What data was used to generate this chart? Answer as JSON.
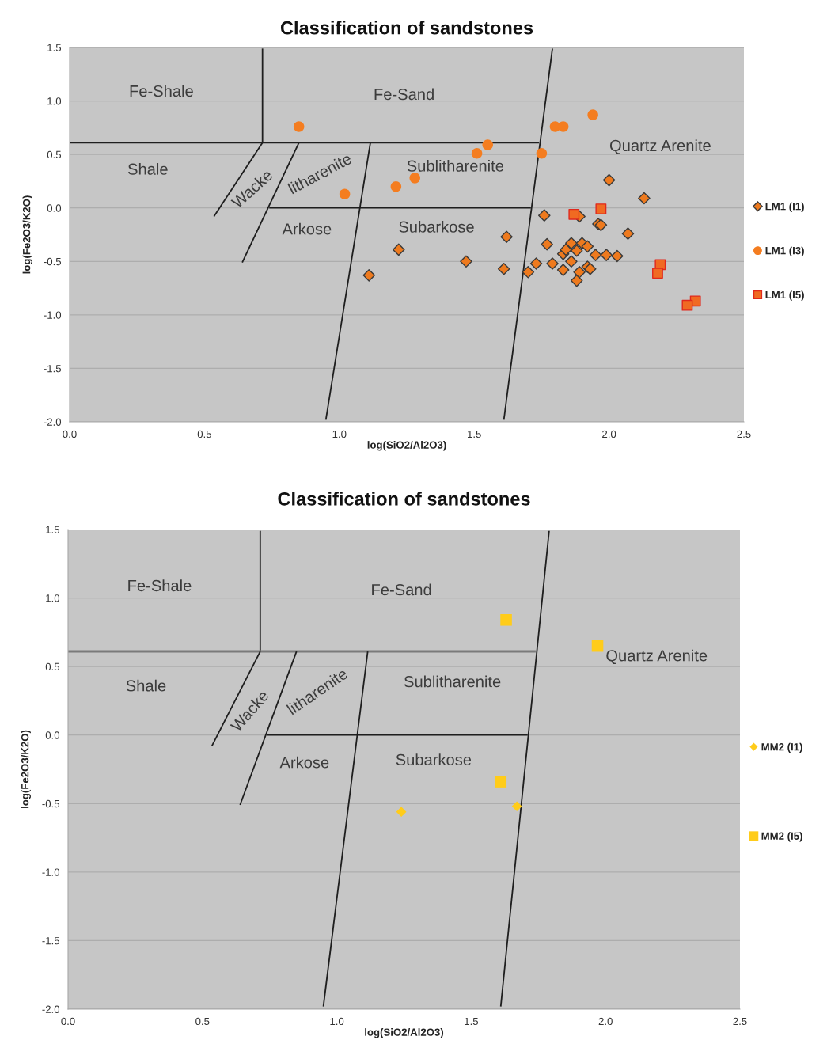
{
  "chart_data": [
    {
      "type": "scatter",
      "title": "Classification of sandstones",
      "xlabel": "log(SiO2/Al2O3)",
      "ylabel": "log(Fe2O3/K2O)",
      "xlim": [
        0,
        2.5
      ],
      "xticks": [
        {
          "value": 0,
          "label": "0.0"
        },
        {
          "value": 0.5,
          "label": "0.5"
        },
        {
          "value": 1,
          "label": "1.0"
        },
        {
          "value": 1.5,
          "label": "1.5"
        },
        {
          "value": 2,
          "label": "2.0"
        },
        {
          "value": 2.5,
          "label": "2.5"
        }
      ],
      "ylim": [
        -2,
        1.5
      ],
      "yticks": [
        {
          "value": -2,
          "label": "-2.0"
        },
        {
          "value": -1.5,
          "label": "-1.5"
        },
        {
          "value": -1,
          "label": "-1.0"
        },
        {
          "value": -0.5,
          "label": "-0.5"
        },
        {
          "value": 0,
          "label": "0.0"
        },
        {
          "value": 0.5,
          "label": "0.5"
        },
        {
          "value": 1,
          "label": "1.0"
        },
        {
          "value": 1.5,
          "label": "1.5"
        }
      ],
      "grid": "y",
      "legend": "right",
      "series": [
        {
          "name": "LM1 (I1)",
          "marker": "diamond",
          "color": "#ee7a1e",
          "x": [
            1.11,
            1.22,
            1.47,
            1.61,
            1.62,
            1.7,
            1.73,
            1.76,
            1.77,
            1.79,
            1.83,
            1.83,
            1.84,
            1.86,
            1.86,
            1.88,
            1.88,
            1.89,
            1.89,
            1.9,
            1.92,
            1.92,
            1.93,
            1.95,
            1.96,
            1.97,
            1.99,
            2.0,
            2.03,
            2.07,
            2.13
          ],
          "values": [
            -0.63,
            -0.39,
            -0.5,
            -0.57,
            -0.27,
            -0.6,
            -0.52,
            -0.07,
            -0.34,
            -0.52,
            -0.43,
            -0.58,
            -0.39,
            -0.5,
            -0.33,
            -0.4,
            -0.68,
            -0.6,
            -0.08,
            -0.33,
            -0.36,
            -0.55,
            -0.57,
            -0.44,
            -0.15,
            -0.16,
            -0.44,
            0.26,
            -0.45,
            -0.24,
            0.09
          ]
        },
        {
          "name": "LM1 (I3)",
          "marker": "circle",
          "color": "#f47d20",
          "x": [
            0.85,
            1.02,
            1.21,
            1.28,
            1.51,
            1.55,
            1.75,
            1.8,
            1.83,
            1.94
          ],
          "values": [
            0.76,
            0.13,
            0.2,
            0.28,
            0.51,
            0.59,
            0.51,
            0.76,
            0.76,
            0.87
          ]
        },
        {
          "name": "LM1 (I5)",
          "marker": "square",
          "color": "#f06a22",
          "x": [
            1.87,
            1.97,
            2.19,
            2.18,
            2.32,
            2.29
          ],
          "values": [
            -0.06,
            -0.01,
            -0.53,
            -0.61,
            -0.87,
            -0.91
          ]
        },
        {
          "type": "line",
          "marker": "none",
          "line_style": "solid",
          "color": "#1e1e1e",
          "x": [
            0.715,
            0.715
          ],
          "values": [
            0.61,
            1.49
          ]
        },
        {
          "type": "line",
          "marker": "none",
          "line_style": "solid",
          "color": "#1e1e1e",
          "x": [
            0,
            1.74
          ],
          "values": [
            0.61,
            0.61
          ]
        },
        {
          "type": "line",
          "marker": "none",
          "line_style": "solid",
          "color": "#1e1e1e",
          "x": [
            0.74,
            1.71
          ],
          "values": [
            0,
            0
          ]
        },
        {
          "type": "line",
          "marker": "none",
          "line_style": "solid",
          "color": "#1e1e1e",
          "x": [
            0.715,
            0.535
          ],
          "values": [
            0.61,
            -0.08
          ]
        },
        {
          "type": "line",
          "marker": "none",
          "line_style": "solid",
          "color": "#1e1e1e",
          "x": [
            0.85,
            0.64
          ],
          "values": [
            0.61,
            -0.51
          ]
        },
        {
          "type": "line",
          "marker": "none",
          "line_style": "solid",
          "color": "#1e1e1e",
          "x": [
            1.115,
            0.95
          ],
          "values": [
            0.61,
            -1.98
          ]
        },
        {
          "type": "line",
          "marker": "none",
          "line_style": "solid",
          "color": "#1e1e1e",
          "x": [
            1.79,
            1.61
          ],
          "values": [
            1.49,
            -1.98
          ]
        }
      ],
      "annotations": [
        "Fe-Shale",
        "Fe-Sand",
        "Shale",
        "Wacke",
        "litharenite",
        "Sublitharenite",
        "Arkose",
        "Subarkose",
        "Quartz Arenite"
      ]
    },
    {
      "type": "scatter",
      "title": "Classification of sandstones",
      "xlabel": "log(SiO2/Al2O3)",
      "ylabel": "log(Fe2O3/K2O)",
      "xlim": [
        0,
        2.5
      ],
      "xticks": [
        {
          "value": 0,
          "label": "0.0"
        },
        {
          "value": 0.5,
          "label": "0.5"
        },
        {
          "value": 1,
          "label": "1.0"
        },
        {
          "value": 1.5,
          "label": "1.5"
        },
        {
          "value": 2,
          "label": "2.0"
        },
        {
          "value": 2.5,
          "label": "2.5"
        }
      ],
      "ylim": [
        -2,
        1.5
      ],
      "yticks": [
        {
          "value": -2,
          "label": "-2.0"
        },
        {
          "value": -1.5,
          "label": "-1.5"
        },
        {
          "value": -1,
          "label": "-1.0"
        },
        {
          "value": -0.5,
          "label": "-0.5"
        },
        {
          "value": 0,
          "label": "0.0"
        },
        {
          "value": 0.5,
          "label": "0.5"
        },
        {
          "value": 1,
          "label": "1.0"
        },
        {
          "value": 1.5,
          "label": "1.5"
        }
      ],
      "grid": "y",
      "legend": "right",
      "series": [
        {
          "name": "MM2 (I1)",
          "marker": "diamond",
          "color": "#ffcc1a",
          "x": [
            1.24,
            1.67
          ],
          "values": [
            -0.56,
            -0.52
          ]
        },
        {
          "name": "MM2 (I5)",
          "marker": "square",
          "color": "#ffcc1a",
          "x": [
            1.63,
            1.97,
            1.61
          ],
          "values": [
            0.84,
            0.65,
            -0.34
          ]
        },
        {
          "type": "line",
          "marker": "none",
          "line_style": "solid",
          "color": "#1e1e1e",
          "x": [
            0.715,
            0.715
          ],
          "values": [
            0.61,
            1.49
          ]
        },
        {
          "type": "line",
          "marker": "none",
          "line_style": "solid",
          "color": "#7a7a7a",
          "x": [
            0,
            1.74
          ],
          "values": [
            0.61,
            0.61
          ]
        },
        {
          "type": "line",
          "marker": "none",
          "line_style": "solid",
          "color": "#1e1e1e",
          "x": [
            0.74,
            1.71
          ],
          "values": [
            0,
            0
          ]
        },
        {
          "type": "line",
          "marker": "none",
          "line_style": "solid",
          "color": "#1e1e1e",
          "x": [
            0.715,
            0.535
          ],
          "values": [
            0.61,
            -0.08
          ]
        },
        {
          "type": "line",
          "marker": "none",
          "line_style": "solid",
          "color": "#1e1e1e",
          "x": [
            0.85,
            0.64
          ],
          "values": [
            0.61,
            -0.51
          ]
        },
        {
          "type": "line",
          "marker": "none",
          "line_style": "solid",
          "color": "#1e1e1e",
          "x": [
            1.115,
            0.95
          ],
          "values": [
            0.61,
            -1.98
          ]
        },
        {
          "type": "line",
          "marker": "none",
          "line_style": "solid",
          "color": "#1e1e1e",
          "x": [
            1.79,
            1.61
          ],
          "values": [
            1.49,
            -1.98
          ]
        }
      ],
      "annotations": [
        "Fe-Shale",
        "Fe-Sand",
        "Shale",
        "Wacke",
        "litharenite",
        "Sublitharenite",
        "Arkose",
        "Subarkose",
        "Quartz Arenite"
      ]
    }
  ]
}
